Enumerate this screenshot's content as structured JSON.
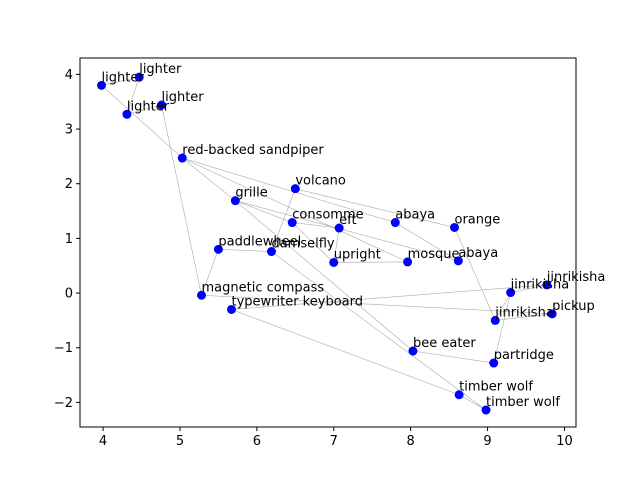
{
  "chart_data": {
    "type": "scatter",
    "title": "",
    "xlabel": "",
    "ylabel": "",
    "xlim": [
      3.7,
      10.15
    ],
    "ylim": [
      -2.45,
      4.3
    ],
    "xticks": [
      4,
      5,
      6,
      7,
      8,
      9,
      10
    ],
    "yticks": [
      -2,
      -1,
      0,
      1,
      2,
      3,
      4
    ],
    "grid": false,
    "marker_color": "#0000ff",
    "edge_color": "#aaaaaa",
    "points": [
      {
        "label": "lighter",
        "x": 3.98,
        "y": 3.8
      },
      {
        "label": "lighter",
        "x": 4.47,
        "y": 3.95
      },
      {
        "label": "lighter",
        "x": 4.31,
        "y": 3.27
      },
      {
        "label": "lighter",
        "x": 4.76,
        "y": 3.44
      },
      {
        "label": "red-backed sandpiper",
        "x": 5.03,
        "y": 2.47
      },
      {
        "label": "grille",
        "x": 5.72,
        "y": 1.69
      },
      {
        "label": "volcano",
        "x": 6.5,
        "y": 1.91
      },
      {
        "label": "consomme",
        "x": 6.46,
        "y": 1.29
      },
      {
        "label": "eft",
        "x": 7.07,
        "y": 1.19
      },
      {
        "label": "abaya",
        "x": 7.8,
        "y": 1.29
      },
      {
        "label": "orange",
        "x": 8.57,
        "y": 1.2
      },
      {
        "label": "abaya",
        "x": 8.62,
        "y": 0.59
      },
      {
        "label": "mosque",
        "x": 7.96,
        "y": 0.57
      },
      {
        "label": "upright",
        "x": 7.0,
        "y": 0.56
      },
      {
        "label": "damselfly",
        "x": 6.19,
        "y": 0.76
      },
      {
        "label": "paddlewheel",
        "x": 5.5,
        "y": 0.8
      },
      {
        "label": "magnetic compass",
        "x": 5.28,
        "y": -0.04
      },
      {
        "label": "typewriter keyboard",
        "x": 5.67,
        "y": -0.3
      },
      {
        "label": "jinrikisha",
        "x": 9.77,
        "y": 0.15
      },
      {
        "label": "jinrikisha",
        "x": 9.3,
        "y": 0.01
      },
      {
        "label": "jinrikisha",
        "x": 9.1,
        "y": -0.5
      },
      {
        "label": "pickup",
        "x": 9.84,
        "y": -0.38
      },
      {
        "label": "bee eater",
        "x": 8.03,
        "y": -1.06
      },
      {
        "label": "partridge",
        "x": 9.08,
        "y": -1.28
      },
      {
        "label": "timber wolf",
        "x": 8.63,
        "y": -1.86
      },
      {
        "label": "timber wolf",
        "x": 8.98,
        "y": -2.14
      }
    ],
    "edges": [
      [
        0,
        1
      ],
      [
        1,
        2
      ],
      [
        0,
        4
      ],
      [
        2,
        3
      ],
      [
        3,
        16
      ],
      [
        4,
        9
      ],
      [
        4,
        12
      ],
      [
        4,
        5
      ],
      [
        5,
        11
      ],
      [
        5,
        22
      ],
      [
        5,
        7
      ],
      [
        6,
        10
      ],
      [
        6,
        14
      ],
      [
        7,
        8
      ],
      [
        8,
        13
      ],
      [
        9,
        11
      ],
      [
        10,
        20
      ],
      [
        13,
        12
      ],
      [
        14,
        15
      ],
      [
        14,
        25
      ],
      [
        15,
        16
      ],
      [
        16,
        21
      ],
      [
        17,
        18
      ],
      [
        17,
        24
      ],
      [
        18,
        19
      ],
      [
        19,
        20
      ],
      [
        22,
        23
      ],
      [
        23,
        19
      ],
      [
        24,
        25
      ],
      [
        13,
        7
      ],
      [
        20,
        21
      ]
    ]
  }
}
